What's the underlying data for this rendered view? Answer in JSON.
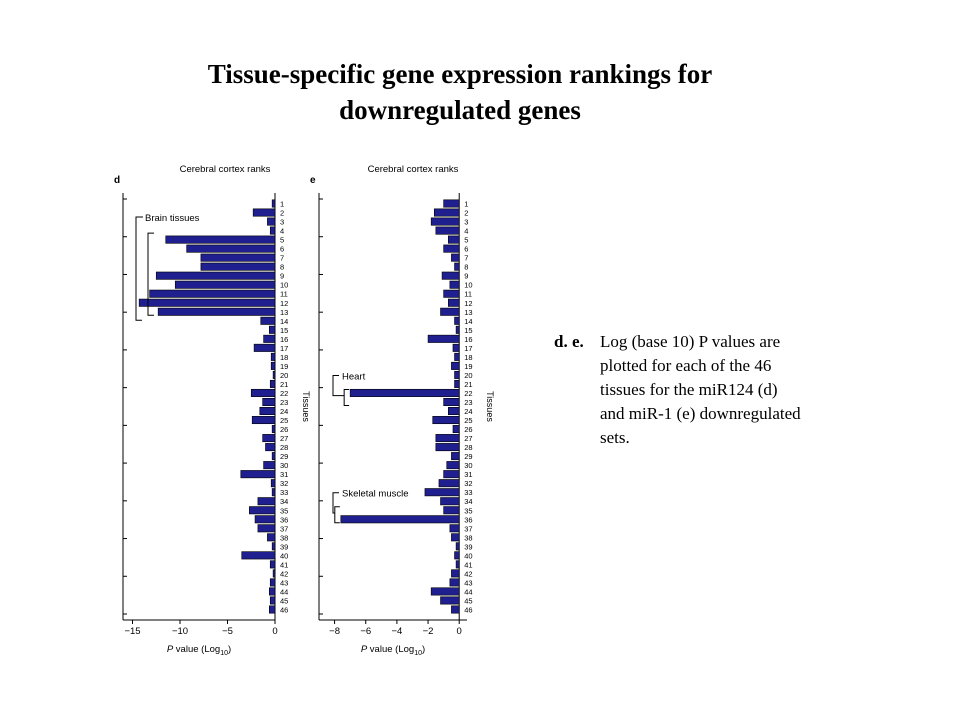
{
  "title": {
    "line1": "Tissue-specific gene expression rankings for",
    "line2": "downregulated genes"
  },
  "caption": {
    "prefix": "d. e.",
    "lines": [
      "Log (base 10) P values  are",
      "plotted for each of the 46",
      "tissues for the miR124 (d)",
      "and miR-1 (e) downregulated",
      "sets."
    ]
  },
  "chart_data": [
    {
      "type": "bar",
      "orientation": "horizontal",
      "panel_label": "d",
      "title": "Cerebral cortex ranks",
      "xlabel": "P value (Log10)",
      "ylabel": "Tissues",
      "xlim": [
        -16,
        0
      ],
      "xticks": [
        -15,
        -10,
        -5,
        0
      ],
      "bar_color": "#1f1f8f",
      "categories": [
        "1",
        "2",
        "3",
        "4",
        "5",
        "6",
        "7",
        "8",
        "9",
        "10",
        "11",
        "12",
        "13",
        "14",
        "15",
        "16",
        "17",
        "18",
        "19",
        "20",
        "21",
        "22",
        "23",
        "24",
        "25",
        "26",
        "27",
        "28",
        "29",
        "30",
        "31",
        "32",
        "33",
        "34",
        "35",
        "36",
        "37",
        "38",
        "39",
        "40",
        "41",
        "42",
        "43",
        "44",
        "45",
        "46"
      ],
      "values": [
        -0.3,
        -2.3,
        -0.8,
        -0.5,
        -11.5,
        -9.3,
        -7.8,
        -7.8,
        -12.5,
        -10.5,
        -13.2,
        -14.3,
        -12.3,
        -1.5,
        -0.6,
        -1.2,
        -2.2,
        -0.4,
        -0.4,
        -0.2,
        -0.5,
        -2.5,
        -1.3,
        -1.6,
        -2.4,
        -0.3,
        -1.3,
        -1.0,
        -0.3,
        -1.2,
        -3.6,
        -0.4,
        -0.3,
        -1.8,
        -2.7,
        -2.1,
        -1.8,
        -0.8,
        -0.3,
        -3.5,
        -0.5,
        -0.2,
        -0.5,
        -0.6,
        -0.5,
        -0.6
      ],
      "annotations": [
        {
          "label": "Brain tissues",
          "range": [
            "5",
            "13"
          ]
        }
      ]
    },
    {
      "type": "bar",
      "orientation": "horizontal",
      "panel_label": "e",
      "title": "Cerebral cortex ranks",
      "xlabel": "P value (Log10)",
      "ylabel": "Tissues",
      "xlim": [
        -9,
        0.5
      ],
      "xticks": [
        -8,
        -6,
        -4,
        -2,
        0
      ],
      "bar_color": "#1f1f8f",
      "categories": [
        "1",
        "2",
        "3",
        "4",
        "5",
        "6",
        "7",
        "8",
        "9",
        "10",
        "11",
        "12",
        "13",
        "14",
        "15",
        "16",
        "17",
        "18",
        "19",
        "20",
        "21",
        "22",
        "23",
        "24",
        "25",
        "26",
        "27",
        "28",
        "29",
        "30",
        "31",
        "32",
        "33",
        "34",
        "35",
        "36",
        "37",
        "38",
        "39",
        "40",
        "41",
        "42",
        "43",
        "44",
        "45",
        "46"
      ],
      "values": [
        -1.0,
        -1.6,
        -1.8,
        -1.5,
        -0.7,
        -1.0,
        -0.5,
        -0.3,
        -1.1,
        -0.6,
        -1.0,
        -0.7,
        -1.2,
        -0.3,
        -0.2,
        -2.0,
        -0.4,
        -0.3,
        -0.5,
        -0.3,
        -0.3,
        -7.0,
        -1.0,
        -0.7,
        -1.7,
        -0.4,
        -1.5,
        -1.5,
        -0.5,
        -0.8,
        -1.0,
        -1.3,
        -2.2,
        -1.2,
        -1.0,
        -7.6,
        -0.6,
        -0.5,
        -0.2,
        -0.3,
        -0.2,
        -0.5,
        -0.6,
        -1.8,
        -1.2,
        -0.5
      ],
      "annotations": [
        {
          "label": "Heart",
          "range": [
            "22",
            "23"
          ]
        },
        {
          "label": "Skeletal muscle",
          "range": [
            "35",
            "36"
          ]
        }
      ]
    }
  ]
}
